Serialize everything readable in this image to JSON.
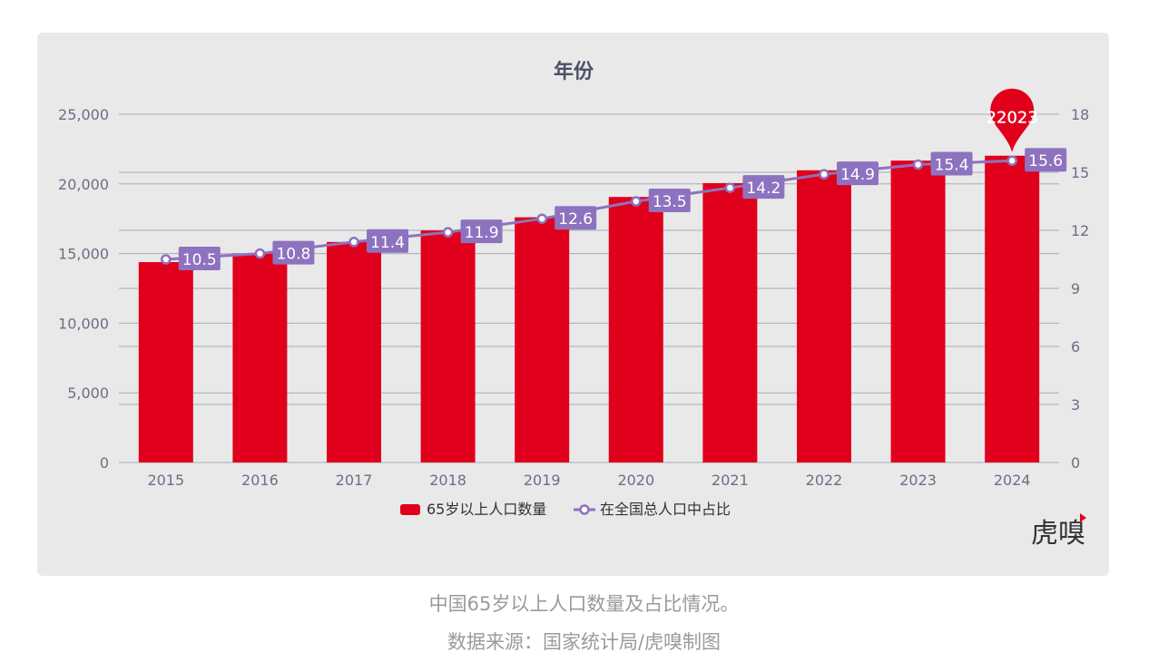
{
  "chart_data": {
    "type": "bar+line",
    "title": "年份",
    "categories": [
      "2015",
      "2016",
      "2017",
      "2018",
      "2019",
      "2020",
      "2021",
      "2022",
      "2023",
      "2024"
    ],
    "series": [
      {
        "name": "65岁以上人口数量",
        "type": "bar",
        "axis": "left",
        "color": "#e0001b",
        "values": [
          14386,
          15003,
          15831,
          16658,
          17603,
          19064,
          20056,
          20978,
          21676,
          22023
        ]
      },
      {
        "name": "在全国总人口中占比",
        "type": "line",
        "axis": "right",
        "color": "#8e72bf",
        "values": [
          10.5,
          10.8,
          11.4,
          11.9,
          12.6,
          13.5,
          14.2,
          14.9,
          15.4,
          15.6
        ]
      }
    ],
    "left_axis": {
      "ylim": [
        0,
        25000
      ],
      "ticks": [
        "0",
        "5,000",
        "10,000",
        "15,000",
        "20,000",
        "25,000"
      ]
    },
    "right_axis": {
      "ylim": [
        0,
        18
      ],
      "ticks": [
        "0",
        "3",
        "6",
        "9",
        "12",
        "15",
        "18"
      ]
    },
    "annotation": {
      "category": "2024",
      "label": "22023",
      "style": "pin"
    },
    "grid": true,
    "legend": "bottom-center"
  },
  "logo": "虎嗅",
  "caption": {
    "line1": "中国65岁以上人口数量及占比情况。",
    "line2": "数据来源：国家统计局/虎嗅制图"
  }
}
